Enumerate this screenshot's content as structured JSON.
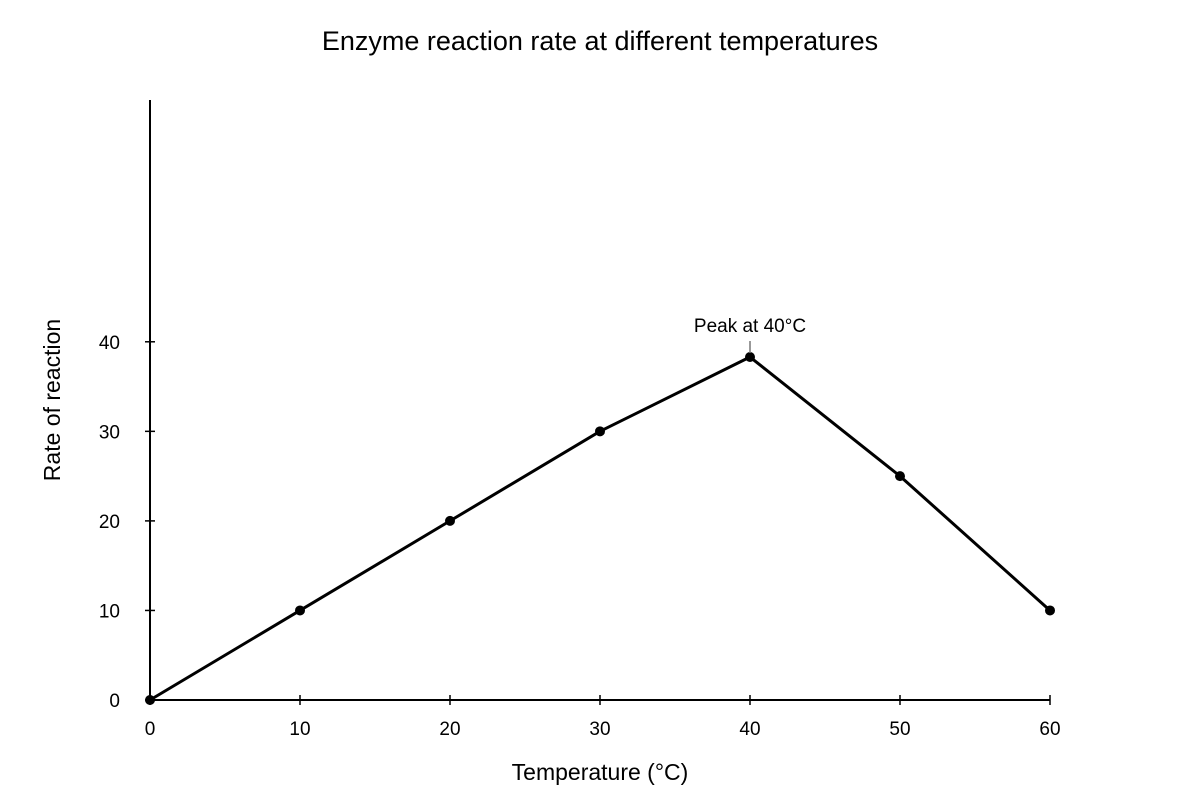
{
  "chart_data": {
    "type": "line",
    "title": "Enzyme reaction rate at different temperatures",
    "xlabel": "Temperature (°C)",
    "ylabel": "Rate of reaction",
    "x": [
      0,
      10,
      20,
      30,
      40,
      50,
      60
    ],
    "series": [
      {
        "values": [
          0,
          10,
          20,
          30,
          38.3,
          25,
          10
        ]
      }
    ],
    "xlim": [
      0,
      60
    ],
    "ylim": [
      0,
      67
    ],
    "xticks": [
      "0",
      "10",
      "20",
      "30",
      "40",
      "50",
      "60"
    ],
    "yticks": [
      "0",
      "10",
      "20",
      "30",
      "40"
    ],
    "grid": false,
    "annotations": [
      {
        "text": "Peak at 40°C",
        "x": 40,
        "y": 38.3
      }
    ],
    "colors": {
      "line": "#000000",
      "marker": "#000000",
      "leader": "#777777"
    }
  }
}
